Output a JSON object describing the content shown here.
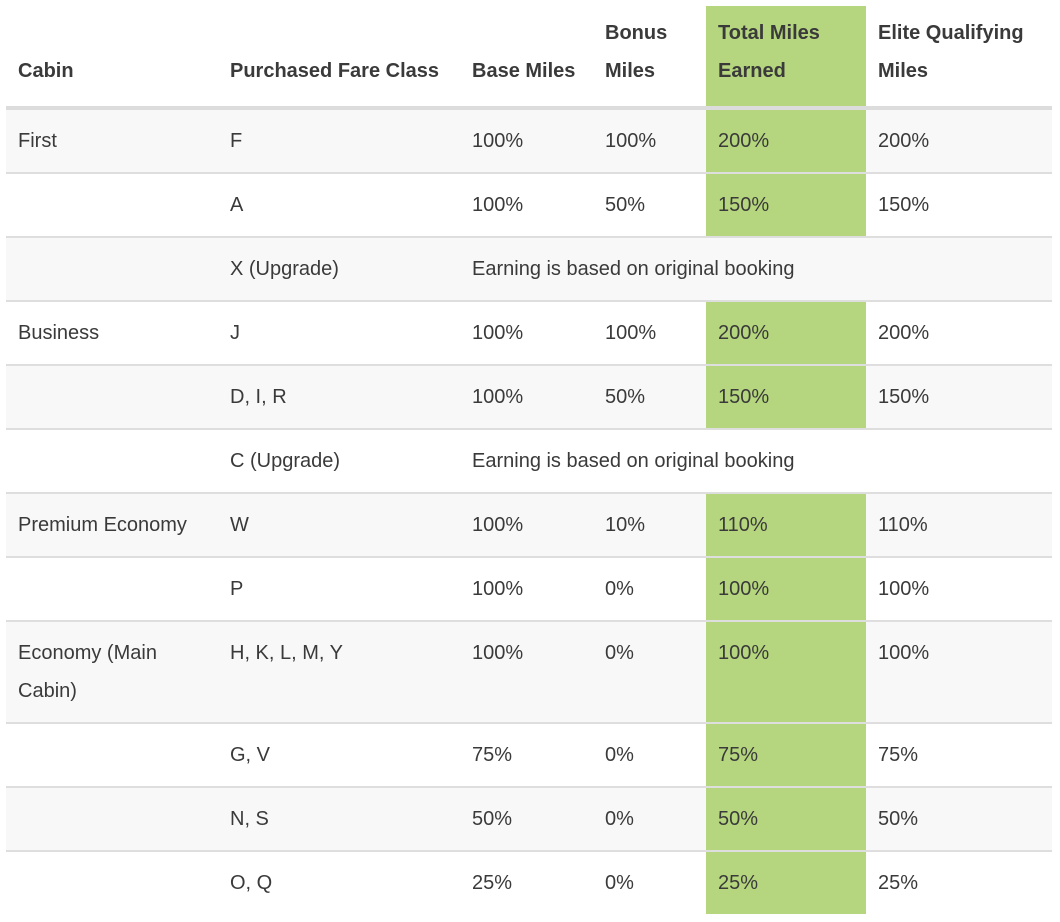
{
  "accent_color": "#b5d67e",
  "headers": [
    "Cabin",
    "Purchased Fare Class",
    "Base Miles",
    "Bonus Miles",
    "Total Miles Earned",
    "Elite Qualifying Miles"
  ],
  "rows": [
    {
      "cabin": "First",
      "fare": "F",
      "base": "100%",
      "bonus": "100%",
      "total": "200%",
      "eqm": "200%"
    },
    {
      "cabin": "",
      "fare": "A",
      "base": "100%",
      "bonus": "50%",
      "total": "150%",
      "eqm": "150%"
    },
    {
      "cabin": "",
      "fare": "X (Upgrade)",
      "note": "Earning is based on original booking"
    },
    {
      "cabin": "Business",
      "fare": "J",
      "base": "100%",
      "bonus": "100%",
      "total": "200%",
      "eqm": "200%"
    },
    {
      "cabin": "",
      "fare": "D, I, R",
      "base": "100%",
      "bonus": "50%",
      "total": "150%",
      "eqm": "150%"
    },
    {
      "cabin": "",
      "fare": "C (Upgrade)",
      "note": "Earning is based on original booking"
    },
    {
      "cabin": "Premium Economy",
      "fare": "W",
      "base": "100%",
      "bonus": "10%",
      "total": "110%",
      "eqm": "110%"
    },
    {
      "cabin": "",
      "fare": "P",
      "base": "100%",
      "bonus": "0%",
      "total": "100%",
      "eqm": "100%"
    },
    {
      "cabin": "Economy (Main Cabin)",
      "fare": "H, K, L, M, Y",
      "base": "100%",
      "bonus": "0%",
      "total": "100%",
      "eqm": "100%"
    },
    {
      "cabin": "",
      "fare": "G, V",
      "base": "75%",
      "bonus": "0%",
      "total": "75%",
      "eqm": "75%"
    },
    {
      "cabin": "",
      "fare": "N, S",
      "base": "50%",
      "bonus": "0%",
      "total": "50%",
      "eqm": "50%"
    },
    {
      "cabin": "",
      "fare": "O, Q",
      "base": "25%",
      "bonus": "0%",
      "total": "25%",
      "eqm": "25%"
    }
  ]
}
